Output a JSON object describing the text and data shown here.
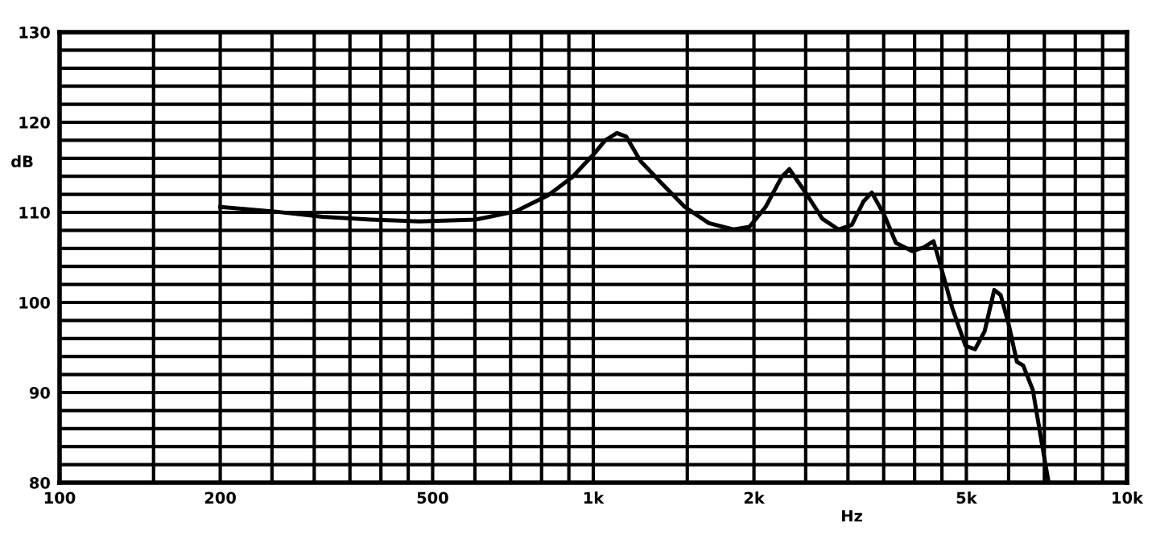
{
  "chart_data": {
    "type": "line",
    "xlabel": "Hz",
    "ylabel": "dB",
    "log": "x",
    "grid": true,
    "marker": "none",
    "line_style": "solid",
    "xlim": [
      100,
      10000
    ],
    "ylim": [
      80,
      130
    ],
    "xticks": [
      100,
      {
        "value": 150,
        "label": null
      },
      200,
      {
        "value": 250,
        "label": null
      },
      {
        "value": 300,
        "label": null
      },
      {
        "value": 350,
        "label": null
      },
      {
        "value": 400,
        "label": null
      },
      {
        "value": 450,
        "label": null
      },
      500,
      {
        "value": 600,
        "label": null
      },
      {
        "value": 700,
        "label": null
      },
      {
        "value": 800,
        "label": null
      },
      {
        "value": 900,
        "label": null
      },
      {
        "value": 1000,
        "label": "1k"
      },
      {
        "value": 1500,
        "label": null
      },
      {
        "value": 2000,
        "label": "2k"
      },
      {
        "value": 2500,
        "label": null
      },
      {
        "value": 3000,
        "label": null
      },
      {
        "value": 3500,
        "label": null
      },
      {
        "value": 4000,
        "label": null
      },
      {
        "value": 4500,
        "label": null
      },
      {
        "value": 5000,
        "label": "5k"
      },
      {
        "value": 6000,
        "label": null
      },
      {
        "value": 7000,
        "label": null
      },
      {
        "value": 8000,
        "label": null
      },
      {
        "value": 9000,
        "label": null
      },
      {
        "value": 10000,
        "label": "10k"
      }
    ],
    "yticks": [
      80,
      {
        "value": 82,
        "label": null
      },
      {
        "value": 84,
        "label": null
      },
      {
        "value": 86,
        "label": null
      },
      {
        "value": 88,
        "label": null
      },
      90,
      {
        "value": 92,
        "label": null
      },
      {
        "value": 94,
        "label": null
      },
      {
        "value": 96,
        "label": null
      },
      {
        "value": 98,
        "label": null
      },
      100,
      {
        "value": 102,
        "label": null
      },
      {
        "value": 104,
        "label": null
      },
      {
        "value": 106,
        "label": null
      },
      {
        "value": 108,
        "label": null
      },
      110,
      {
        "value": 112,
        "label": null
      },
      {
        "value": 114,
        "label": null
      },
      {
        "value": 116,
        "label": null
      },
      {
        "value": 118,
        "label": null
      },
      120,
      {
        "value": 122,
        "label": null
      },
      {
        "value": 124,
        "label": null
      },
      {
        "value": 126,
        "label": null
      },
      {
        "value": 128,
        "label": null
      },
      130
    ],
    "series": [
      {
        "color": "#000000",
        "x": [
          200,
          252,
          311,
          383,
          472,
          602,
          715,
          823,
          913,
          1000,
          1053,
          1107,
          1153,
          1226,
          1339,
          1484,
          1646,
          1830,
          1962,
          2103,
          2252,
          2330,
          2505,
          2686,
          2880,
          3050,
          3207,
          3325,
          3510,
          3690,
          3960,
          4160,
          4340,
          4483,
          4705,
          4980,
          5190,
          5410,
          5640,
          5800,
          6000,
          6220,
          6390,
          6660,
          6900,
          7130
        ],
        "values": [
          110.6,
          110.1,
          109.5,
          109.2,
          109.0,
          109.2,
          110.1,
          111.9,
          113.9,
          116.4,
          118.0,
          118.8,
          118.4,
          115.7,
          113.3,
          110.6,
          108.8,
          108.1,
          108.4,
          110.6,
          113.9,
          114.8,
          112.1,
          109.3,
          108.1,
          108.6,
          111.2,
          112.2,
          109.7,
          106.6,
          105.7,
          106.1,
          106.8,
          103.9,
          99.4,
          95.2,
          94.8,
          96.8,
          101.4,
          100.8,
          97.6,
          93.4,
          93.0,
          90.3,
          84.9,
          80
        ]
      }
    ]
  }
}
